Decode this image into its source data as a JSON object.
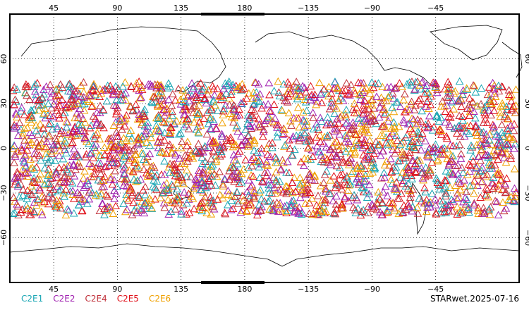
{
  "map": {
    "projection": "equirectangular",
    "center_longitude": 180,
    "lon_range": [
      14,
      374
    ],
    "lat_range": [
      -90,
      90
    ],
    "grid": "dotted",
    "lon_tick_labels": [
      "45",
      "90",
      "135",
      "180",
      "−135",
      "−90",
      "−45"
    ],
    "lon_tick_values": [
      45,
      90,
      135,
      180,
      225,
      270,
      315
    ],
    "lat_tick_labels": [
      "60",
      "30",
      "0",
      "−30",
      "−60"
    ],
    "lat_tick_values": [
      60,
      30,
      0,
      -30,
      -60
    ],
    "marker": "triangle-open",
    "observation_lat_range": [
      -45,
      45
    ]
  },
  "legend": [
    {
      "label": "C2E1",
      "color": "#1aa6b4"
    },
    {
      "label": "C2E2",
      "color": "#a020b0"
    },
    {
      "label": "C2E4",
      "color": "#c0303a"
    },
    {
      "label": "C2E5",
      "color": "#e0101a"
    },
    {
      "label": "C2E6",
      "color": "#f0a000"
    }
  ],
  "footer": {
    "title": "STARwet.2025-07-16"
  }
}
